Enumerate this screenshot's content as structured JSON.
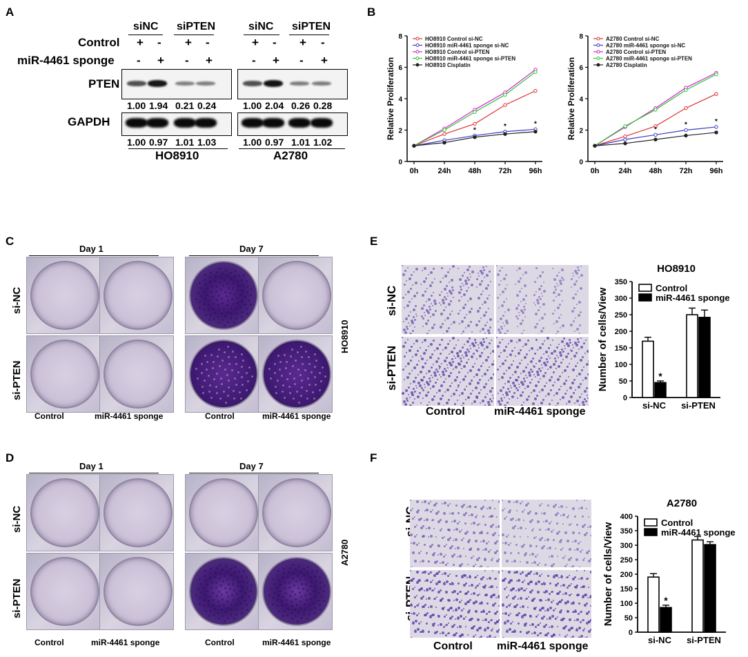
{
  "panels": {
    "A": "A",
    "B": "B",
    "C": "C",
    "D": "D",
    "E": "E",
    "F": "F"
  },
  "blot": {
    "si_nc": "siNC",
    "si_pten": "siPTEN",
    "control": "Control",
    "sponge": "miR-4461 sponge",
    "plus": "+",
    "minus": "-",
    "pten": "PTEN",
    "gapdh": "GAPDH",
    "cell1": "HO8910",
    "cell2": "A2780",
    "pten_vals_1": [
      "1.00",
      "1.94",
      "0.21",
      "0.24"
    ],
    "pten_vals_2": [
      "1.00",
      "2.04",
      "0.26",
      "0.28"
    ],
    "gapdh_vals_1": [
      "1.00",
      "0.97",
      "1.01",
      "1.03"
    ],
    "gapdh_vals_2": [
      "1.00",
      "0.97",
      "1.01",
      "1.02"
    ],
    "control_signs": [
      "+",
      "-",
      "+",
      "-"
    ],
    "sponge_signs": [
      "-",
      "+",
      "-",
      "+"
    ]
  },
  "colony": {
    "day1": "Day 1",
    "day7": "Day 7",
    "si_nc": "si-NC",
    "si_pten": "si-PTEN",
    "control": "Control",
    "sponge": "miR-4461 sponge",
    "cell1": "HO8910",
    "cell2": "A2780"
  },
  "transwell": {
    "si_nc": "si-NC",
    "si_pten": "si-PTEN",
    "control": "Control",
    "sponge": "miR-4461 sponge"
  },
  "chart_data": [
    {
      "type": "line",
      "ylabel": "Relative Proliferation",
      "x": [
        "0h",
        "24h",
        "48h",
        "72h",
        "96h"
      ],
      "ylim": [
        0,
        8
      ],
      "yticks": [
        0,
        2,
        4,
        6,
        8
      ],
      "series": [
        {
          "name": "HO8910 Control si-NC",
          "color": "#e03030",
          "values": [
            1.0,
            1.75,
            2.4,
            3.6,
            4.5
          ]
        },
        {
          "name": "HO8910 miR-4461 sponge si-NC",
          "color": "#3a3ac8",
          "values": [
            1.0,
            1.35,
            1.65,
            1.9,
            2.05
          ]
        },
        {
          "name": "HO8910 Control si-PTEN",
          "color": "#d020d0",
          "values": [
            1.0,
            2.1,
            3.3,
            4.4,
            5.85
          ]
        },
        {
          "name": "HO8910 miR-4461 sponge si-PTEN",
          "color": "#30c030",
          "values": [
            1.0,
            2.0,
            3.15,
            4.25,
            5.7
          ]
        },
        {
          "name": "HO8910 Cisplatin",
          "color": "#222222",
          "values": [
            1.0,
            1.2,
            1.55,
            1.75,
            1.9
          ]
        }
      ],
      "star_points": [
        2,
        3,
        4
      ],
      "star": "*"
    },
    {
      "type": "line",
      "ylabel": "Relative Proliferation",
      "x": [
        "0h",
        "24h",
        "48h",
        "72h",
        "96h"
      ],
      "ylim": [
        0,
        8
      ],
      "yticks": [
        0,
        2,
        4,
        6,
        8
      ],
      "series": [
        {
          "name": "A2780 Control si-NC",
          "color": "#e03030",
          "values": [
            1.0,
            1.6,
            2.25,
            3.4,
            4.3
          ]
        },
        {
          "name": "A2780 miR-4461 sponge si-NC",
          "color": "#3a3ac8",
          "values": [
            1.0,
            1.4,
            1.7,
            2.0,
            2.2
          ]
        },
        {
          "name": "A2780 Control si-PTEN",
          "color": "#d020d0",
          "values": [
            1.0,
            2.2,
            3.4,
            4.7,
            5.65
          ]
        },
        {
          "name": "A2780 miR-4461 sponge si-PTEN",
          "color": "#30c030",
          "values": [
            1.0,
            2.25,
            3.3,
            4.55,
            5.55
          ]
        },
        {
          "name": "A2780 Cisplatin",
          "color": "#222222",
          "values": [
            1.0,
            1.15,
            1.4,
            1.65,
            1.85
          ]
        }
      ],
      "star_points": [
        2,
        3,
        4
      ],
      "star": "*"
    },
    {
      "type": "bar",
      "title": "HO8910",
      "ylabel": "Number of cells/View",
      "categories": [
        "si-NC",
        "si-PTEN"
      ],
      "ylim": [
        0,
        350
      ],
      "yticks": [
        0,
        50,
        100,
        150,
        200,
        250,
        300,
        350
      ],
      "series": [
        {
          "name": "Control",
          "values": [
            170,
            250
          ],
          "errors": [
            12,
            20
          ]
        },
        {
          "name": "miR-4461 sponge",
          "values": [
            45,
            242
          ],
          "errors": [
            5,
            22
          ]
        }
      ],
      "star": "*"
    },
    {
      "type": "bar",
      "title": "A2780",
      "ylabel": "Number of cells/View",
      "categories": [
        "si-NC",
        "si-PTEN"
      ],
      "ylim": [
        0,
        400
      ],
      "yticks": [
        0,
        50,
        100,
        150,
        200,
        250,
        300,
        350,
        400
      ],
      "series": [
        {
          "name": "Control",
          "values": [
            190,
            318
          ],
          "errors": [
            12,
            12
          ]
        },
        {
          "name": "miR-4461 sponge",
          "values": [
            85,
            302
          ],
          "errors": [
            8,
            10
          ]
        }
      ],
      "star": "*"
    }
  ]
}
